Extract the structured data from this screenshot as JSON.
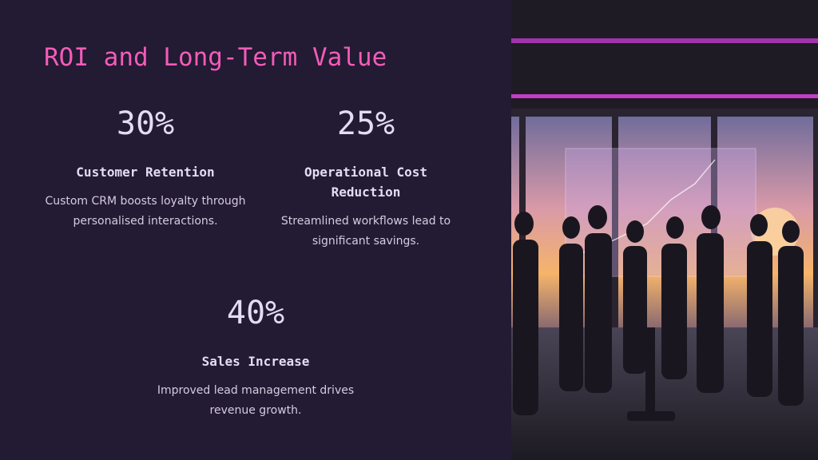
{
  "title": "ROI and Long-Term Value",
  "stats": [
    {
      "value": "30%",
      "label": "Customer Retention",
      "description": "Custom CRM boosts loyalty through personalised interactions."
    },
    {
      "value": "25%",
      "label": "Operational Cost Reduction",
      "description": "Streamlined workflows lead to significant savings."
    },
    {
      "value": "40%",
      "label": "Sales Increase",
      "description": "Improved lead management drives revenue growth."
    }
  ]
}
